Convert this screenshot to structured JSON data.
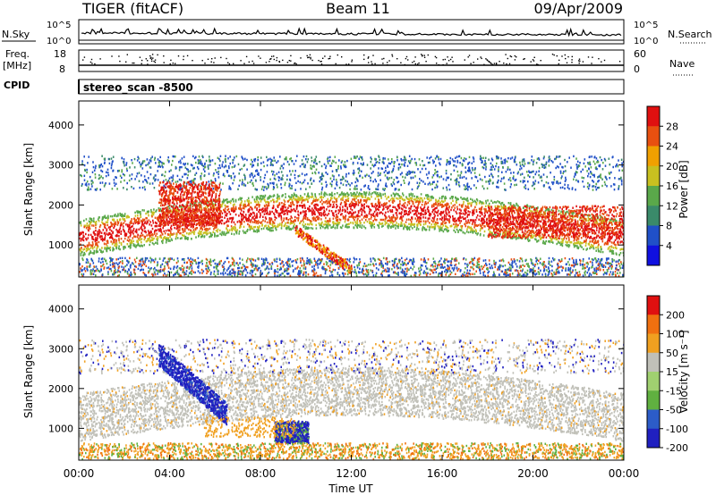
{
  "header": {
    "title": "TIGER (fitACF)",
    "beam": "Beam 11",
    "date": "09/Apr/2009"
  },
  "sky_panel": {
    "left_label": "N.Sky",
    "right_label": "N.Search",
    "top_tick_left": "10^5",
    "bottom_tick_left": "10^0",
    "top_tick_right": "10^5",
    "bottom_tick_right": "10^0"
  },
  "freq_panel": {
    "left_label_line1": "Freq.",
    "left_label_line2": "[MHz]",
    "top_tick_left": "18",
    "bottom_tick_left": "8",
    "right_label": "Nave",
    "top_tick_right": "60",
    "bottom_tick_right": "0"
  },
  "cpid": {
    "label": "CPID",
    "value": "stereo_scan -8500"
  },
  "chart_data": [
    {
      "type": "heatmap",
      "name": "power",
      "ylabel": "Slant Range [km]",
      "ylim": [
        200,
        4600
      ],
      "yticks": [
        "1000",
        "2000",
        "3000",
        "4000"
      ],
      "xlim_hours": [
        0,
        24
      ],
      "colorbar": {
        "label": "Power [dB]",
        "ticks": [
          "4",
          "8",
          "12",
          "16",
          "20",
          "24",
          "28"
        ],
        "colors": [
          "#1010e0",
          "#2050c8",
          "#3a8a6a",
          "#5aa84a",
          "#c8c020",
          "#f0a000",
          "#e85010",
          "#e01010"
        ]
      },
      "bands": [
        {
          "time": [
            0,
            24
          ],
          "range": [
            200,
            2800
          ],
          "note_color": "#d02010"
        }
      ]
    },
    {
      "type": "heatmap",
      "name": "velocity",
      "ylabel": "Slant Range [km]",
      "ylim": [
        200,
        4600
      ],
      "yticks": [
        "1000",
        "2000",
        "3000",
        "4000"
      ],
      "xlim_hours": [
        0,
        24
      ],
      "xlabel": "Time UT",
      "xticks": [
        "00:00",
        "04:00",
        "08:00",
        "12:00",
        "16:00",
        "20:00",
        "00:00"
      ],
      "colorbar": {
        "label": "Velocity [m s⁻¹]",
        "ticks": [
          "200",
          "100",
          "50",
          "15",
          "-15",
          "-50",
          "-100",
          "-200"
        ],
        "colors": [
          "#2020c0",
          "#2c5cc8",
          "#60b040",
          "#a0d070",
          "#c0c0b8",
          "#f0a020",
          "#f07010",
          "#e01010"
        ]
      }
    }
  ]
}
